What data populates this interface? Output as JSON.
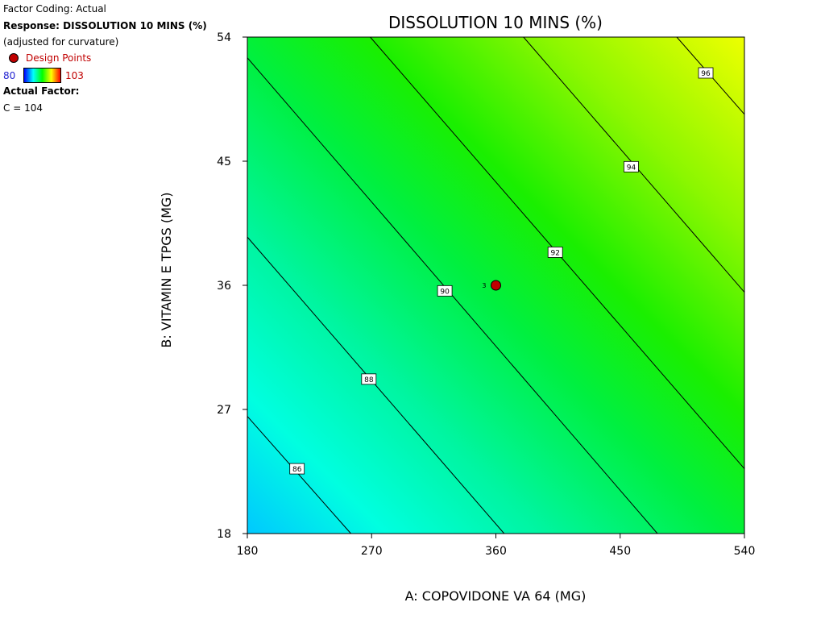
{
  "legend": {
    "factor_coding": "Factor Coding: Actual",
    "response": "Response: DISSOLUTION 10 MINS (%)",
    "adjusted": "(adjusted for curvature)",
    "design_points": "Design Points",
    "scale_min": "80",
    "scale_max": "103",
    "actual_factor_title": "Actual Factor:",
    "actual_factor_value": "C = 104"
  },
  "chart_data": {
    "type": "contour",
    "title": "DISSOLUTION 10 MINS (%)",
    "xlabel": "A: COPOVIDONE VA 64 (MG)",
    "ylabel": "B: VITAMIN E TPGS (MG)",
    "xlim": [
      180,
      540
    ],
    "ylim": [
      18,
      54
    ],
    "xticks": [
      "180",
      "270",
      "360",
      "450",
      "540"
    ],
    "yticks": [
      "18",
      "27",
      "36",
      "45",
      "54"
    ],
    "color_range": [
      80,
      103
    ],
    "contours": [
      {
        "level": "86",
        "line": [
          [
            180,
            26.5
          ],
          [
            255,
            18
          ]
        ],
        "label_at": [
          216,
          22.7
        ]
      },
      {
        "level": "88",
        "line": [
          [
            180,
            39.5
          ],
          [
            366,
            18
          ]
        ],
        "label_at": [
          268,
          29.2
        ]
      },
      {
        "level": "90",
        "line": [
          [
            180,
            52.5
          ],
          [
            477,
            18
          ]
        ],
        "label_at": [
          323,
          35.6
        ]
      },
      {
        "level": "92",
        "line": [
          [
            269,
            54
          ],
          [
            540,
            22.7
          ]
        ],
        "label_at": [
          403,
          38.4
        ]
      },
      {
        "level": "94",
        "line": [
          [
            380,
            54
          ],
          [
            540,
            35.5
          ]
        ],
        "label_at": [
          458,
          44.6
        ]
      },
      {
        "level": "96",
        "line": [
          [
            491,
            54
          ],
          [
            540,
            48.4
          ]
        ],
        "label_at": [
          512,
          51.4
        ]
      }
    ],
    "design_points": [
      {
        "x": 360,
        "y": 36,
        "label": "3"
      }
    ]
  }
}
